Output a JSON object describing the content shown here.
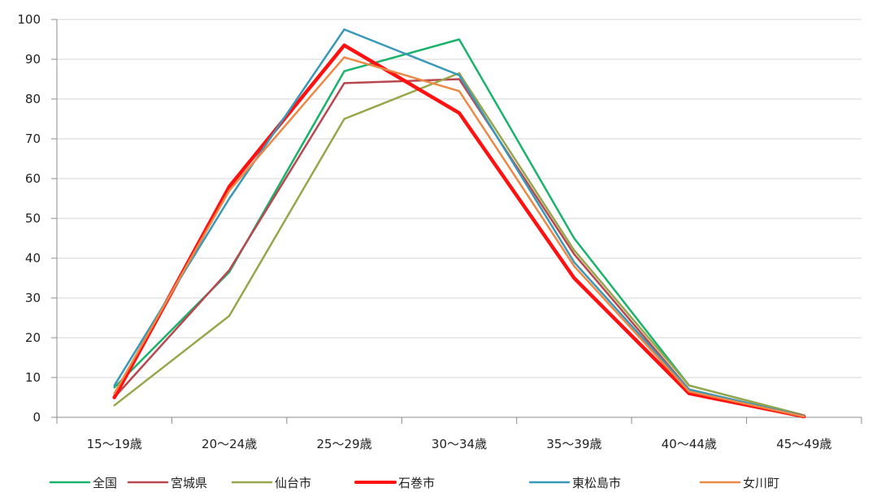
{
  "chart_data": {
    "type": "line",
    "categories": [
      "15～19歳",
      "20～24歳",
      "25～29歳",
      "30～34歳",
      "35～39歳",
      "40～44歳",
      "45～49歳"
    ],
    "ylim": [
      0,
      100
    ],
    "yticks": [
      0,
      10,
      20,
      30,
      40,
      50,
      60,
      70,
      80,
      90,
      100
    ],
    "grid": true,
    "legend_position": "bottom",
    "series": [
      {
        "name": "全国",
        "color": "#19b36b",
        "values": [
          7.5,
          36.5,
          87,
          95,
          45,
          8,
          0.5
        ]
      },
      {
        "name": "宮城県",
        "color": "#b9474f",
        "values": [
          5,
          37,
          84,
          85,
          41,
          7,
          0.3
        ]
      },
      {
        "name": "仙台市",
        "color": "#96a64a",
        "values": [
          3,
          25.5,
          75,
          86.5,
          42,
          8,
          0.5
        ]
      },
      {
        "name": "石巻市",
        "color": "#ff1111",
        "values": [
          5,
          58,
          93.5,
          76.5,
          35,
          6,
          0.2
        ]
      },
      {
        "name": "東松島市",
        "color": "#3a98b8",
        "values": [
          8,
          55,
          97.5,
          86,
          39,
          7,
          0.3
        ]
      },
      {
        "name": "女川町",
        "color": "#ea8a46",
        "values": [
          6,
          57,
          90.5,
          82,
          38,
          6.5,
          0.2
        ]
      }
    ]
  }
}
